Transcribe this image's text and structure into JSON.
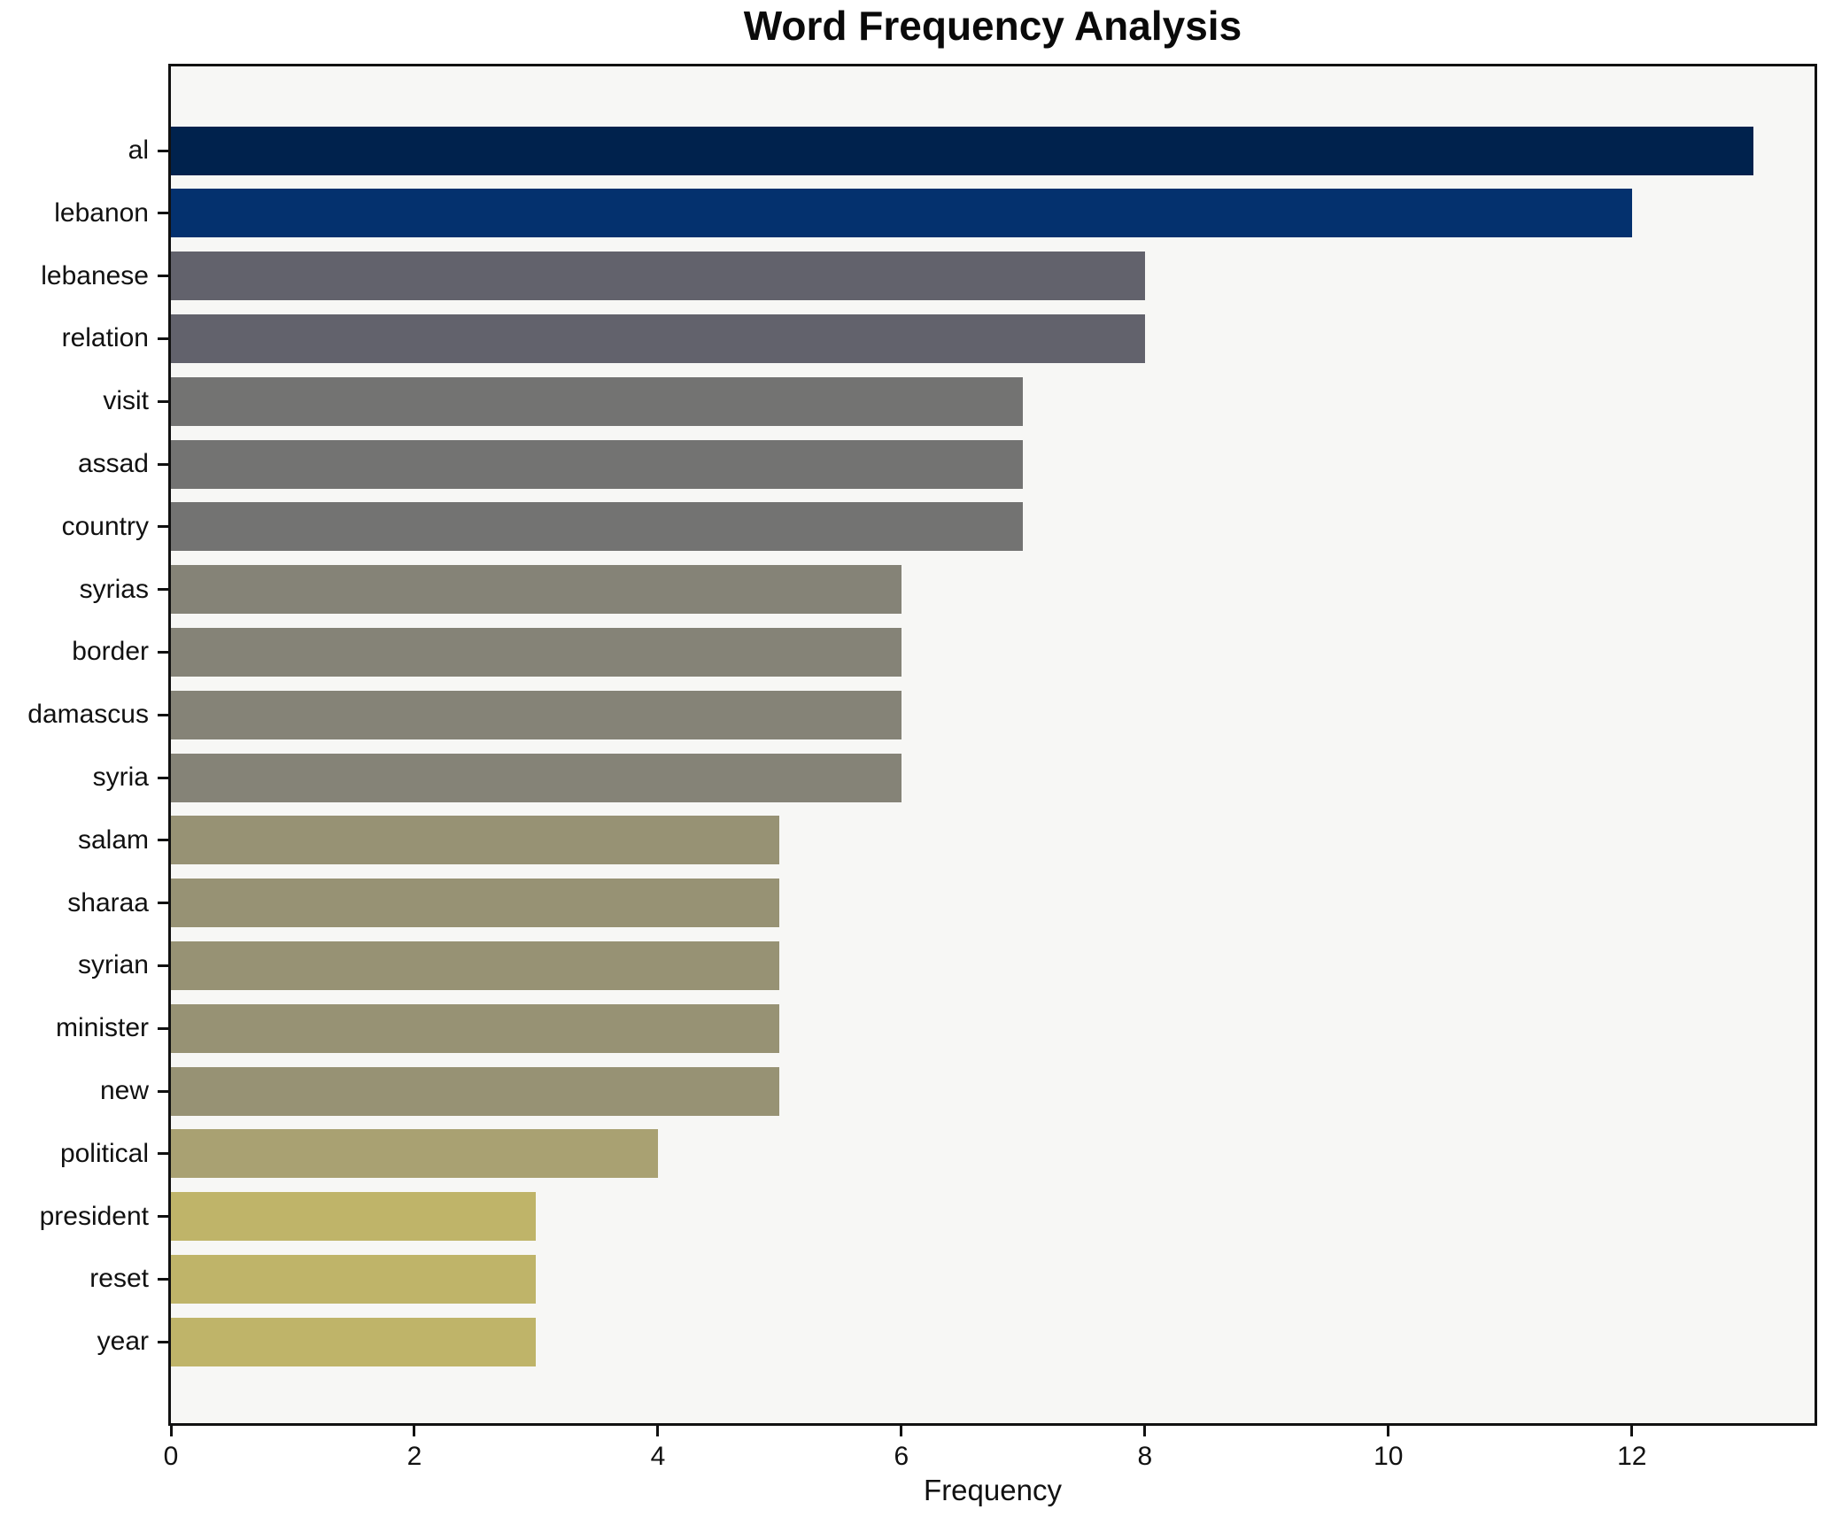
{
  "title": "Word Frequency Analysis",
  "chart_data": {
    "type": "bar",
    "orientation": "horizontal",
    "title": "Word Frequency Analysis",
    "xlabel": "Frequency",
    "ylabel": "",
    "grid": false,
    "legend_position": "none",
    "xlim": [
      0,
      13.5
    ],
    "x_ticks": [
      0,
      2,
      4,
      6,
      8,
      10,
      12
    ],
    "categories": [
      "al",
      "lebanon",
      "lebanese",
      "relation",
      "visit",
      "assad",
      "country",
      "syrias",
      "border",
      "damascus",
      "syria",
      "salam",
      "sharaa",
      "syrian",
      "minister",
      "new",
      "political",
      "president",
      "reset",
      "year"
    ],
    "values": [
      13,
      12,
      8,
      8,
      7,
      7,
      7,
      6,
      6,
      6,
      6,
      5,
      5,
      5,
      5,
      5,
      4,
      3,
      3,
      3
    ],
    "bar_colors": [
      "#00224d",
      "#04316e",
      "#62626c",
      "#62626c",
      "#737372",
      "#737372",
      "#737372",
      "#858377",
      "#858377",
      "#858377",
      "#858377",
      "#979274",
      "#979274",
      "#979274",
      "#979274",
      "#979274",
      "#a9a172",
      "#bfb469",
      "#bfb469",
      "#bfb469"
    ],
    "colors": {
      "plot_background": "#f7f7f5",
      "figure_background": "#ffffff",
      "spine": "#111111",
      "text": "#111111"
    }
  }
}
